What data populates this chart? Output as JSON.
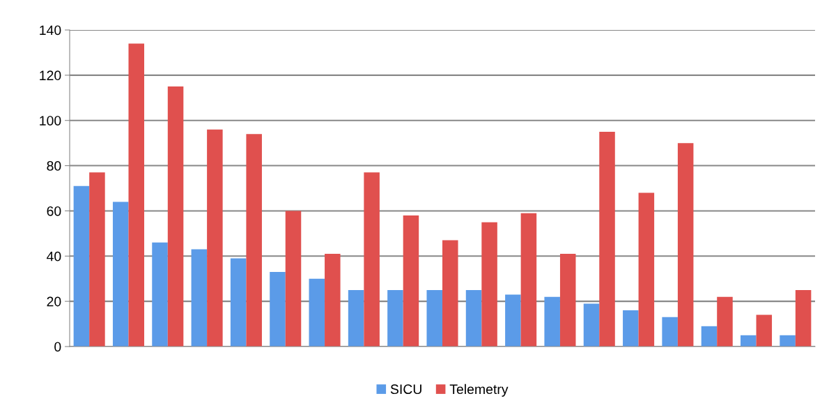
{
  "chart_data": {
    "type": "bar",
    "categories": [
      null,
      null,
      null,
      null,
      null,
      null,
      null,
      null,
      null,
      null,
      null,
      null,
      null,
      null,
      null,
      null,
      null,
      null,
      null
    ],
    "series": [
      {
        "name": "SICU",
        "color": "#5b9be8",
        "values": [
          71,
          64,
          46,
          43,
          39,
          33,
          30,
          25,
          25,
          25,
          25,
          23,
          22,
          19,
          16,
          13,
          9,
          5,
          5
        ]
      },
      {
        "name": "Telemetry",
        "color": "#e0504e",
        "values": [
          77,
          134,
          115,
          96,
          94,
          60,
          41,
          77,
          58,
          47,
          55,
          59,
          41,
          95,
          68,
          90,
          22,
          14,
          25
        ]
      }
    ],
    "ylim": [
      0,
      140
    ],
    "yticks": [
      0,
      20,
      40,
      60,
      80,
      100,
      120,
      140
    ],
    "grid": "y",
    "legend": "bottom"
  }
}
